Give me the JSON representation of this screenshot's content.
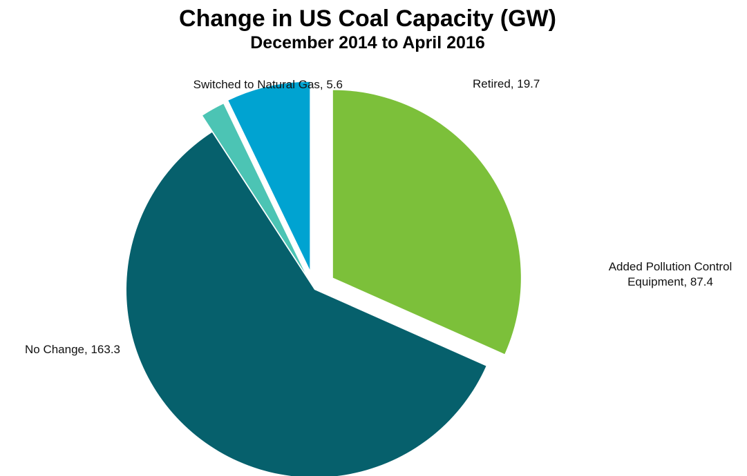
{
  "chart_data": {
    "type": "pie",
    "title": "Change in US Coal Capacity (GW)",
    "subtitle": "December 2014 to April 2016",
    "start_angle_deg": 0,
    "direction": "clockwise",
    "slices": [
      {
        "label": "Added Pollution Control Equipment",
        "value": 87.4,
        "display": [
          "Added Pollution Control",
          "Equipment, 87.4"
        ],
        "color": "#7cc03a",
        "exploded": true
      },
      {
        "label": "No Change",
        "value": 163.3,
        "display": [
          "No Change, 163.3"
        ],
        "color": "#06606c",
        "exploded": false
      },
      {
        "label": "Switched to Natural Gas",
        "value": 5.6,
        "display": [
          "Switched to Natural Gas, 5.6"
        ],
        "color": "#4cc4b4",
        "exploded": true
      },
      {
        "label": "Retired",
        "value": 19.7,
        "display": [
          "Retired, 19.7"
        ],
        "color": "#00a3d1",
        "exploded": true
      }
    ]
  }
}
